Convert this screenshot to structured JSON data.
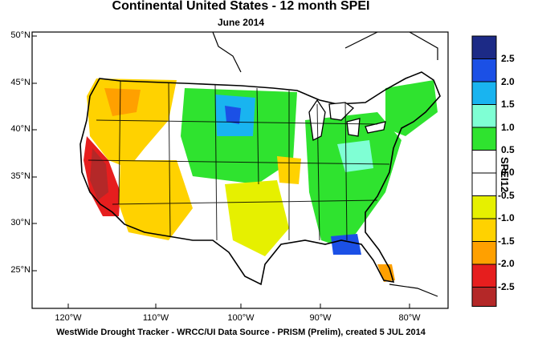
{
  "title": "Continental United States - 12 month SPEI",
  "subtitle": "June 2014",
  "footer": "WestWide Drought Tracker - WRCC/UI  Data Source - PRISM (Prelim), created  5 JUL 2014",
  "map": {
    "lat_ticks": [
      "50°N",
      "45°N",
      "40°N",
      "35°N",
      "30°N",
      "25°N"
    ],
    "lon_ticks": [
      "120°W",
      "110°W",
      "100°W",
      "90°W",
      "80°W"
    ]
  },
  "colorbar": {
    "title": "SPEI12",
    "labels": [
      "2.5",
      "2.0",
      "1.5",
      "1.0",
      "0.5",
      "0.0",
      "-0.5",
      "-1.0",
      "-1.5",
      "-2.0",
      "-2.5"
    ],
    "colors": [
      "#1c2a86",
      "#1b50e6",
      "#19b4f0",
      "#7fffd4",
      "#2fe32f",
      "#ffffff",
      "#ffffff",
      "#e6f000",
      "#ffd200",
      "#ffa000",
      "#ff7800",
      "#e61e1e",
      "#b42828"
    ]
  }
}
